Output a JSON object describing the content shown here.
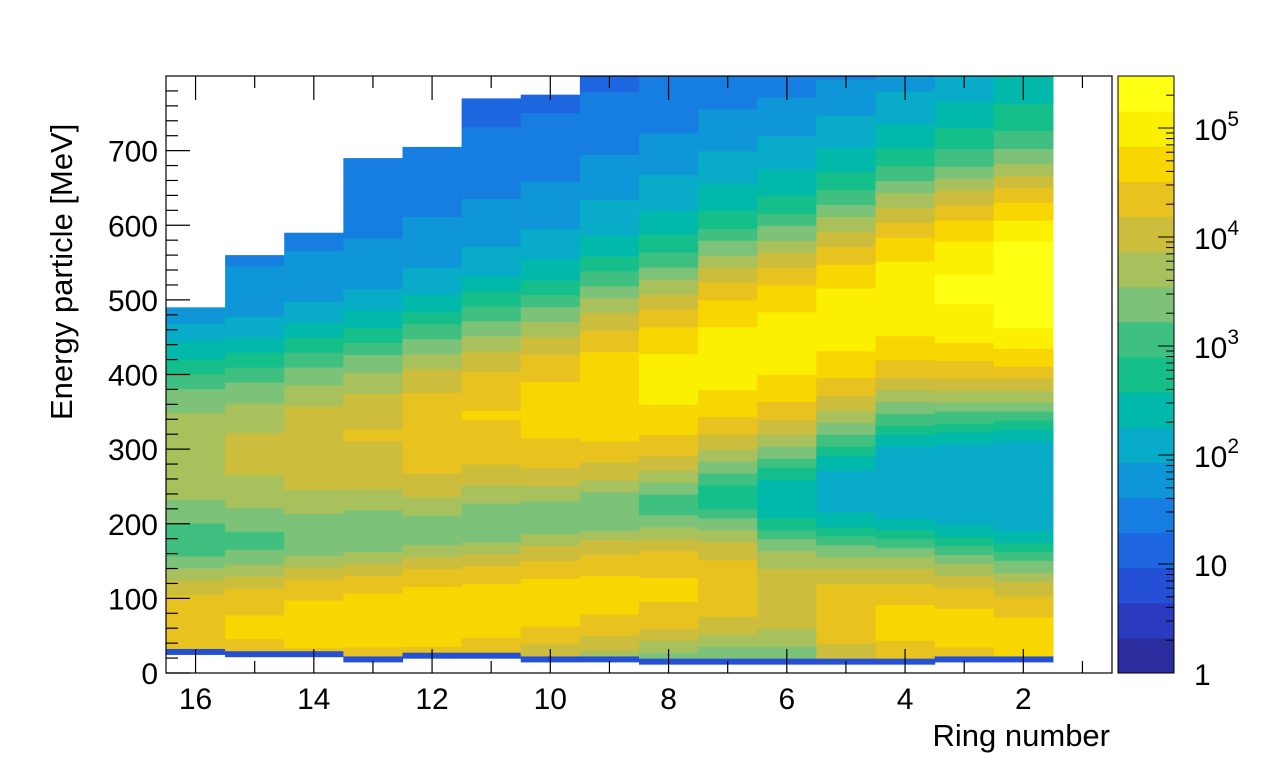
{
  "chart_data": {
    "type": "heatmap",
    "title": "",
    "xlabel": "Ring number",
    "ylabel": "Energy particle [MeV]",
    "x_axis_reversed": true,
    "xlim": [
      0.5,
      16.5
    ],
    "ylim": [
      0,
      800
    ],
    "x_ticks": [
      16,
      14,
      12,
      10,
      8,
      6,
      4,
      2
    ],
    "x_tick_labels": [
      "16",
      "14",
      "12",
      "10",
      "8",
      "6",
      "4",
      "2"
    ],
    "y_ticks": [
      0,
      100,
      200,
      300,
      400,
      500,
      600,
      700
    ],
    "y_tick_labels": [
      "0",
      "100",
      "200",
      "300",
      "400",
      "500",
      "600",
      "700"
    ],
    "z_scale": "log",
    "zlim": [
      1,
      300000
    ],
    "colorbar_ticks": [
      {
        "value": 1,
        "label": "1",
        "exp": ""
      },
      {
        "value": 10,
        "label": "10",
        "exp": ""
      },
      {
        "value": 100,
        "label": "10",
        "exp": "2"
      },
      {
        "value": 1000,
        "label": "10",
        "exp": "3"
      },
      {
        "value": 10000,
        "label": "10",
        "exp": "4"
      },
      {
        "value": 100000,
        "label": "10",
        "exp": "5"
      }
    ],
    "palette": [
      "#2b2d9e",
      "#2b3bbf",
      "#2450d6",
      "#1d66e0",
      "#167ee0",
      "#0f96d8",
      "#08abc8",
      "#00b9ab",
      "#14bf8a",
      "#40c080",
      "#7cc278",
      "#a8c15c",
      "#cdbd3d",
      "#e8c21e",
      "#f8d600",
      "#fbf000",
      "#ffff14"
    ],
    "grid": false,
    "legend": "none",
    "rings": [
      {
        "ring": 16,
        "e_min": 25,
        "e_max": 490,
        "low_peak_e": 60,
        "low_peak_max": 30000,
        "high_peak_e": 290,
        "high_peak_max": 6000
      },
      {
        "ring": 15,
        "e_min": 22,
        "e_max": 560,
        "low_peak_e": 62,
        "low_peak_max": 35000,
        "high_peak_e": 290,
        "high_peak_max": 8000
      },
      {
        "ring": 14,
        "e_min": 22,
        "e_max": 590,
        "low_peak_e": 67,
        "low_peak_max": 45000,
        "high_peak_e": 300,
        "high_peak_max": 12000
      },
      {
        "ring": 13,
        "e_min": 15,
        "e_max": 690,
        "low_peak_e": 72,
        "low_peak_max": 50000,
        "high_peak_e": 310,
        "high_peak_max": 15000
      },
      {
        "ring": 12,
        "e_min": 20,
        "e_max": 705,
        "low_peak_e": 77,
        "low_peak_max": 55000,
        "high_peak_e": 320,
        "high_peak_max": 25000
      },
      {
        "ring": 11,
        "e_min": 20,
        "e_max": 770,
        "low_peak_e": 85,
        "low_peak_max": 50000,
        "high_peak_e": 340,
        "high_peak_max": 30000
      },
      {
        "ring": 10,
        "e_min": 15,
        "e_max": 775,
        "low_peak_e": 95,
        "low_peak_max": 45000,
        "high_peak_e": 350,
        "high_peak_max": 40000
      },
      {
        "ring": 9,
        "e_min": 15,
        "e_max": 800,
        "low_peak_e": 105,
        "low_peak_max": 40000,
        "high_peak_e": 370,
        "high_peak_max": 60000
      },
      {
        "ring": 8,
        "e_min": 12,
        "e_max": 800,
        "low_peak_e": 112,
        "low_peak_max": 35000,
        "high_peak_e": 390,
        "high_peak_max": 80000
      },
      {
        "ring": 7,
        "e_min": 12,
        "e_max": 800,
        "low_peak_e": 115,
        "low_peak_max": 25000,
        "high_peak_e": 420,
        "high_peak_max": 90000
      },
      {
        "ring": 6,
        "e_min": 12,
        "e_max": 800,
        "low_peak_e": 100,
        "low_peak_max": 12000,
        "high_peak_e": 440,
        "high_peak_max": 90000
      },
      {
        "ring": 5,
        "e_min": 12,
        "e_max": 800,
        "low_peak_e": 80,
        "low_peak_max": 25000,
        "high_peak_e": 470,
        "high_peak_max": 90000
      },
      {
        "ring": 4,
        "e_min": 12,
        "e_max": 800,
        "low_peak_e": 68,
        "low_peak_max": 40000,
        "high_peak_e": 500,
        "high_peak_max": 100000
      },
      {
        "ring": 3,
        "e_min": 15,
        "e_max": 800,
        "low_peak_e": 60,
        "low_peak_max": 40000,
        "high_peak_e": 510,
        "high_peak_max": 150000
      },
      {
        "ring": 2,
        "e_min": 15,
        "e_max": 800,
        "low_peak_e": 50,
        "low_peak_max": 40000,
        "high_peak_e": 520,
        "high_peak_max": 250000
      }
    ]
  }
}
